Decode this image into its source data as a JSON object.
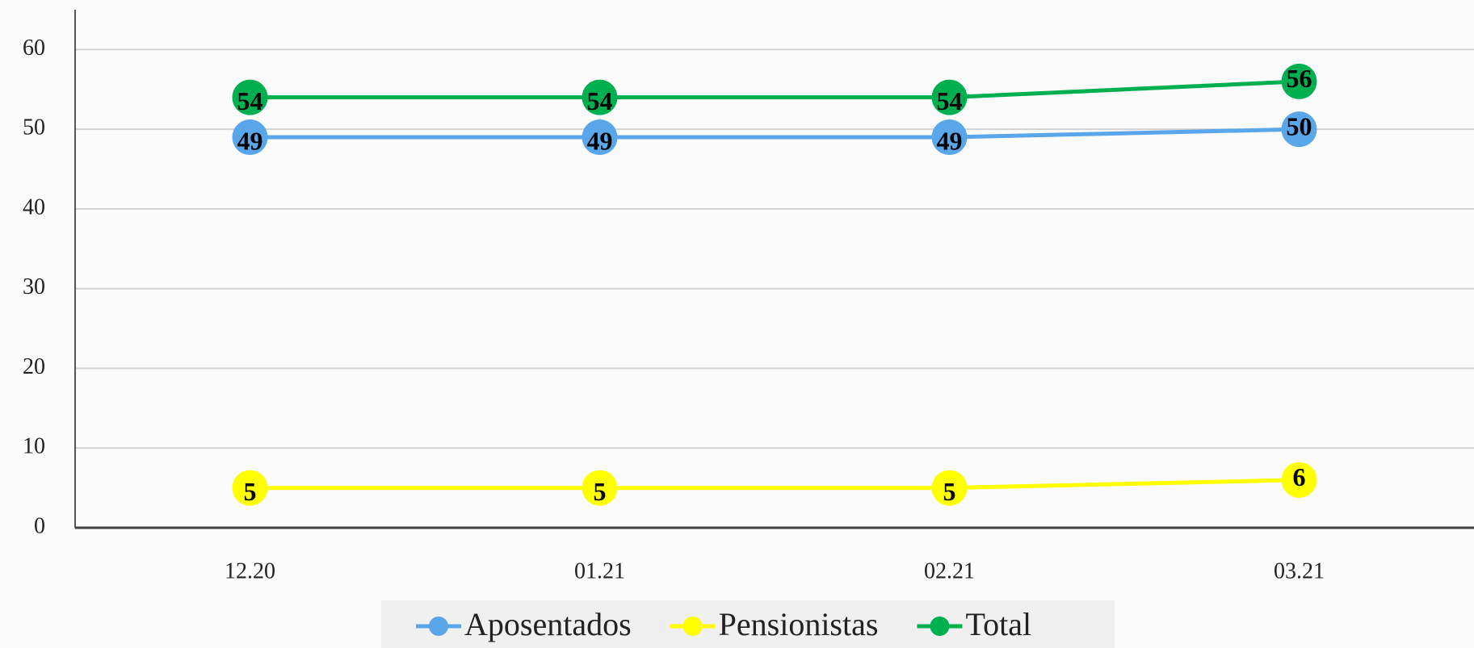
{
  "chart_data": {
    "type": "line",
    "categories": [
      "12.20",
      "01.21",
      "02.21",
      "03.21"
    ],
    "series": [
      {
        "name": "Aposentados",
        "color": "#5aa6ea",
        "values": [
          49,
          49,
          49,
          50
        ]
      },
      {
        "name": "Pensionistas",
        "color": "#ffff00",
        "values": [
          5,
          5,
          5,
          6
        ]
      },
      {
        "name": "Total",
        "color": "#00b050",
        "values": [
          54,
          54,
          54,
          56
        ]
      }
    ],
    "ylim": [
      0,
      65
    ],
    "yticks": [
      0,
      10,
      20,
      30,
      40,
      50,
      60
    ],
    "grid": true,
    "legend": "bottom"
  }
}
